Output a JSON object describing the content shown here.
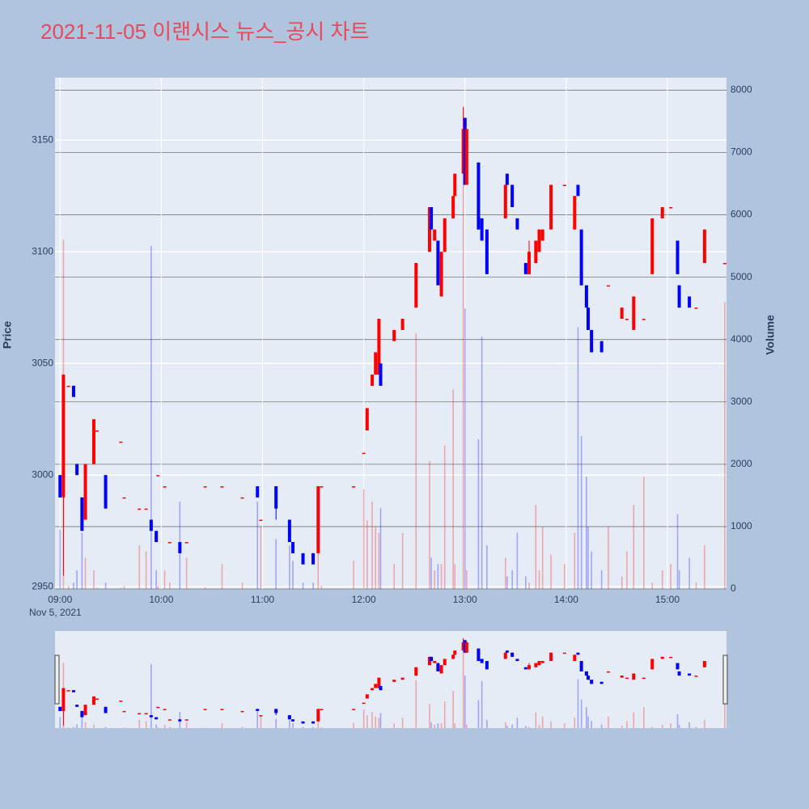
{
  "chart_data": {
    "type": "candlestick",
    "title": "2021-11-05 이랜시스 뉴스_공시 차트",
    "x_date_label": "Nov 5, 2021",
    "y_label": "Price",
    "y2_label": "Volume",
    "increasing_color": "#ff0000",
    "decreasing_color": "#0000ff",
    "range_slider": true,
    "grid": true,
    "xlim": [
      "08:57",
      "15:35"
    ],
    "xticks": [
      "09:00",
      "10:00",
      "11:00",
      "12:00",
      "13:00",
      "14:00",
      "15:00"
    ],
    "ylim": [
      2949,
      3178
    ],
    "yticks": [
      2950,
      3000,
      3050,
      3100,
      3150
    ],
    "y2lim": [
      0,
      8200
    ],
    "y2ticks": [
      0,
      1000,
      2000,
      3000,
      4000,
      5000,
      6000,
      7000,
      8000
    ],
    "x": [
      "09:00",
      "09:02",
      "09:05",
      "09:08",
      "09:10",
      "09:13",
      "09:15",
      "09:20",
      "09:22",
      "09:27",
      "09:36",
      "09:38",
      "09:47",
      "09:51",
      "09:54",
      "09:57",
      "09:58",
      "10:02",
      "10:05",
      "10:11",
      "10:15",
      "10:26",
      "10:36",
      "10:48",
      "10:57",
      "10:59",
      "11:08",
      "11:16",
      "11:18",
      "11:24",
      "11:30",
      "11:33",
      "11:35",
      "11:54",
      "12:00",
      "12:02",
      "12:05",
      "12:07",
      "12:09",
      "12:10",
      "12:18",
      "12:23",
      "12:31",
      "12:39",
      "12:40",
      "12:42",
      "12:44",
      "12:46",
      "12:48",
      "12:53",
      "12:54",
      "12:59",
      "13:00",
      "13:01",
      "13:08",
      "13:10",
      "13:13",
      "13:24",
      "13:25",
      "13:28",
      "13:31",
      "13:36",
      "13:38",
      "13:42",
      "13:44",
      "13:46",
      "13:51",
      "13:59",
      "14:05",
      "14:07",
      "14:09",
      "14:12",
      "14:13",
      "14:15",
      "14:21",
      "14:25",
      "14:33",
      "14:36",
      "14:40",
      "14:46",
      "14:51",
      "14:57",
      "15:02",
      "15:06",
      "15:07",
      "15:13",
      "15:17",
      "15:22",
      "15:34"
    ],
    "open": [
      3000,
      2990,
      3040,
      3040,
      3005,
      2990,
      2980,
      3005,
      3020,
      3000,
      3015,
      2990,
      2985,
      2985,
      2980,
      2975,
      3000,
      2995,
      2970,
      2970,
      2970,
      2995,
      2995,
      2990,
      2995,
      2980,
      2995,
      2980,
      2970,
      2965,
      2965,
      2965,
      2995,
      2995,
      3010,
      3020,
      3040,
      3045,
      3045,
      3050,
      3060,
      3065,
      3075,
      3100,
      3120,
      3105,
      3105,
      3080,
      3100,
      3115,
      3125,
      3135,
      3160,
      3130,
      3140,
      3115,
      3110,
      3115,
      3135,
      3130,
      3115,
      3095,
      3090,
      3095,
      3100,
      3105,
      3110,
      3130,
      3110,
      3130,
      3110,
      3085,
      3075,
      3065,
      3060,
      3085,
      3070,
      3070,
      3065,
      3070,
      3090,
      3115,
      3120,
      3105,
      3085,
      3080,
      3075,
      3095,
      3095
    ],
    "high": [
      3000,
      3045,
      3040,
      3040,
      3005,
      2990,
      3005,
      3025,
      3020,
      3000,
      3015,
      2990,
      2985,
      2985,
      2980,
      2975,
      3000,
      2995,
      2970,
      2970,
      2970,
      2995,
      2995,
      2990,
      2995,
      2980,
      2995,
      2980,
      2970,
      2965,
      2965,
      2995,
      2995,
      2995,
      3010,
      3030,
      3045,
      3055,
      3070,
      3050,
      3065,
      3070,
      3095,
      3120,
      3120,
      3110,
      3105,
      3100,
      3115,
      3125,
      3135,
      3165,
      3160,
      3155,
      3140,
      3115,
      3110,
      3130,
      3135,
      3130,
      3115,
      3095,
      3105,
      3105,
      3110,
      3110,
      3130,
      3130,
      3125,
      3130,
      3110,
      3085,
      3075,
      3065,
      3060,
      3085,
      3075,
      3070,
      3080,
      3070,
      3115,
      3120,
      3120,
      3105,
      3085,
      3080,
      3075,
      3110,
      3095
    ],
    "low": [
      2990,
      2955,
      3040,
      3035,
      3000,
      2975,
      2980,
      3005,
      3020,
      2985,
      3015,
      2990,
      2985,
      2985,
      2975,
      2970,
      3000,
      2995,
      2970,
      2965,
      2970,
      2995,
      2995,
      2990,
      2990,
      2980,
      2980,
      2970,
      2965,
      2960,
      2960,
      2965,
      2995,
      2995,
      3010,
      3020,
      3040,
      3045,
      3045,
      3040,
      3060,
      3065,
      3075,
      3100,
      3110,
      3105,
      3085,
      3080,
      3100,
      3115,
      3125,
      3135,
      3130,
      3130,
      3110,
      3105,
      3090,
      3115,
      3130,
      3120,
      3110,
      3090,
      3090,
      3095,
      3100,
      3105,
      3110,
      3130,
      3110,
      3125,
      3085,
      3075,
      3065,
      3055,
      3055,
      3085,
      3070,
      3070,
      3065,
      3070,
      3090,
      3115,
      3120,
      3090,
      3075,
      3075,
      3075,
      3095,
      3095
    ],
    "close": [
      2990,
      3045,
      3040,
      3035,
      3000,
      2975,
      3005,
      3025,
      3020,
      2985,
      3015,
      2990,
      2985,
      2985,
      2975,
      2970,
      3000,
      2995,
      2970,
      2965,
      2970,
      2995,
      2995,
      2990,
      2990,
      2980,
      2985,
      2970,
      2965,
      2960,
      2960,
      2995,
      2995,
      2995,
      3010,
      3030,
      3045,
      3055,
      3070,
      3040,
      3065,
      3070,
      3095,
      3120,
      3110,
      3110,
      3085,
      3100,
      3115,
      3125,
      3135,
      3155,
      3130,
      3155,
      3110,
      3105,
      3090,
      3130,
      3130,
      3120,
      3110,
      3090,
      3100,
      3105,
      3110,
      3110,
      3130,
      3130,
      3125,
      3125,
      3085,
      3075,
      3065,
      3055,
      3055,
      3085,
      3075,
      3070,
      3080,
      3070,
      3115,
      3120,
      3120,
      3090,
      3075,
      3075,
      3075,
      3110,
      3095
    ],
    "volume": [
      950,
      5600,
      50,
      100,
      300,
      900,
      500,
      300,
      20,
      100,
      20,
      50,
      700,
      600,
      5500,
      300,
      50,
      300,
      100,
      1400,
      500,
      30,
      400,
      100,
      1400,
      1000,
      800,
      700,
      450,
      100,
      100,
      1650,
      50,
      450,
      1600,
      1100,
      1400,
      1000,
      900,
      1300,
      400,
      900,
      4100,
      2050,
      500,
      300,
      400,
      400,
      2300,
      3200,
      400,
      7700,
      4500,
      300,
      2400,
      4050,
      700,
      500,
      200,
      300,
      900,
      200,
      100,
      1350,
      300,
      1000,
      550,
      400,
      900,
      4200,
      2450,
      1800,
      1000,
      600,
      300,
      1000,
      200,
      600,
      1350,
      1800,
      100,
      300,
      400,
      1200,
      300,
      500,
      100,
      700,
      4600
    ]
  }
}
